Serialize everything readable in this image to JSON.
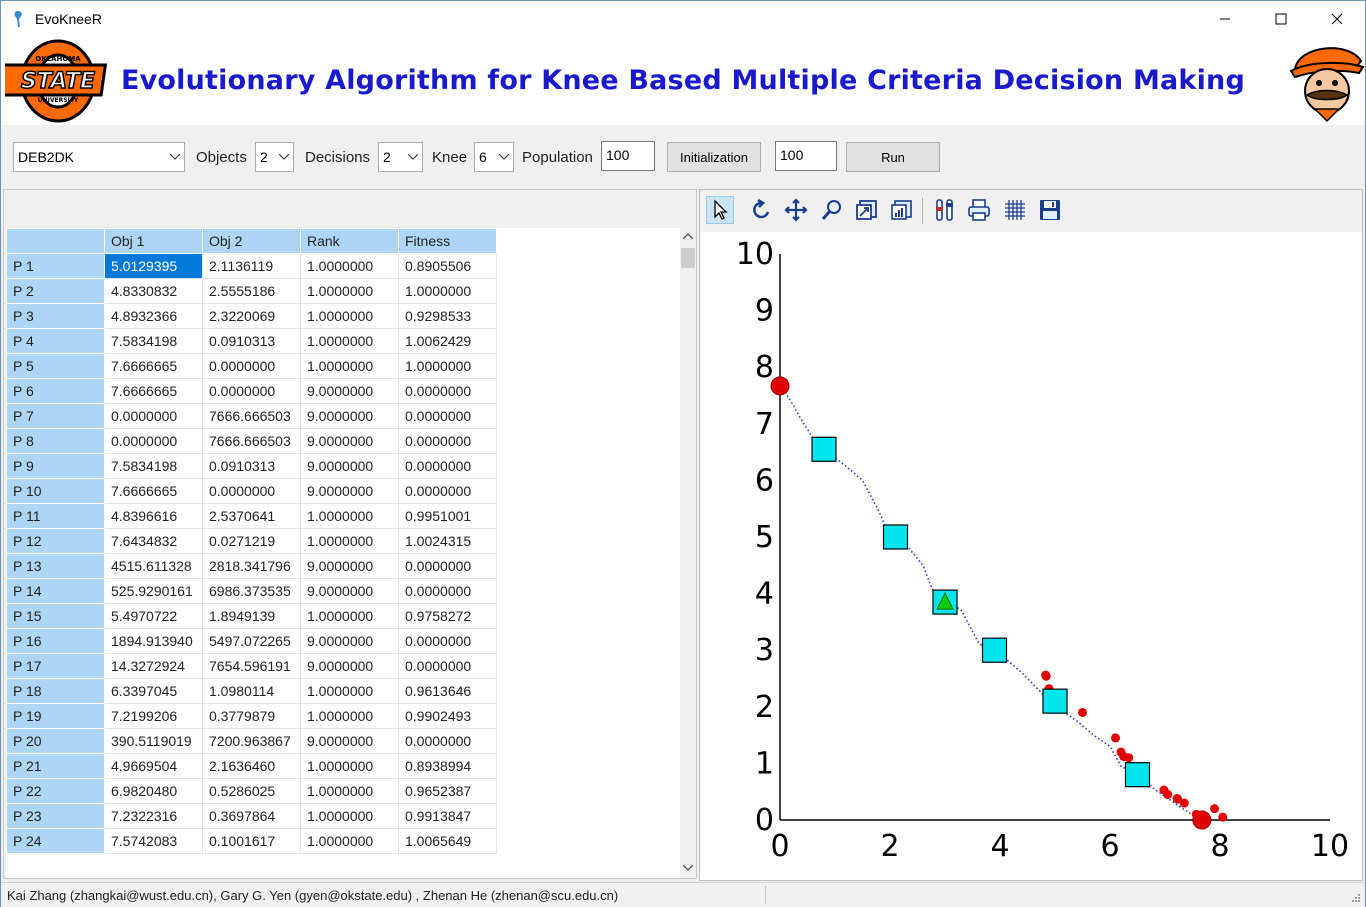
{
  "window": {
    "title": "EvoKneeR"
  },
  "banner": {
    "title": "Evolutionary Algorithm for Knee Based Multiple Criteria Decision Making",
    "logo_text_top": "OKLAHOMA",
    "logo_text_main": "STATE",
    "logo_text_bottom": "UNIVERSITY"
  },
  "controls": {
    "problem_select": "DEB2DK",
    "objects_label": "Objects",
    "objects_value": "2",
    "decisions_label": "Decisions",
    "decisions_value": "2",
    "knee_label": "Knee",
    "knee_value": "6",
    "population_label": "Population",
    "population_value": "100",
    "initialization_button": "Initialization",
    "generations_value": "100",
    "run_button": "Run"
  },
  "table": {
    "columns": [
      "Obj 1",
      "Obj 2",
      "Rank",
      "Fitness"
    ],
    "rows": [
      [
        "P 1",
        "5.0129395",
        "2.1136119",
        "1.0000000",
        "0.8905506"
      ],
      [
        "P 2",
        "4.8330832",
        "2.5555186",
        "1.0000000",
        "1.0000000"
      ],
      [
        "P 3",
        "4.8932366",
        "2.3220069",
        "1.0000000",
        "0.9298533"
      ],
      [
        "P 4",
        "7.5834198",
        "0.0910313",
        "1.0000000",
        "1.0062429"
      ],
      [
        "P 5",
        "7.6666665",
        "0.0000000",
        "1.0000000",
        "1.0000000"
      ],
      [
        "P 6",
        "7.6666665",
        "0.0000000",
        "9.0000000",
        "0.0000000"
      ],
      [
        "P 7",
        "0.0000000",
        "7666.666503",
        "9.0000000",
        "0.0000000"
      ],
      [
        "P 8",
        "0.0000000",
        "7666.666503",
        "9.0000000",
        "0.0000000"
      ],
      [
        "P 9",
        "7.5834198",
        "0.0910313",
        "9.0000000",
        "0.0000000"
      ],
      [
        "P 10",
        "7.6666665",
        "0.0000000",
        "9.0000000",
        "0.0000000"
      ],
      [
        "P 11",
        "4.8396616",
        "2.5370641",
        "1.0000000",
        "0.9951001"
      ],
      [
        "P 12",
        "7.6434832",
        "0.0271219",
        "1.0000000",
        "1.0024315"
      ],
      [
        "P 13",
        "4515.611328",
        "2818.341796",
        "9.0000000",
        "0.0000000"
      ],
      [
        "P 14",
        "525.9290161",
        "6986.373535",
        "9.0000000",
        "0.0000000"
      ],
      [
        "P 15",
        "5.4970722",
        "1.8949139",
        "1.0000000",
        "0.9758272"
      ],
      [
        "P 16",
        "1894.913940",
        "5497.072265",
        "9.0000000",
        "0.0000000"
      ],
      [
        "P 17",
        "14.3272924",
        "7654.596191",
        "9.0000000",
        "0.0000000"
      ],
      [
        "P 18",
        "6.3397045",
        "1.0980114",
        "1.0000000",
        "0.9613646"
      ],
      [
        "P 19",
        "7.2199206",
        "0.3779879",
        "1.0000000",
        "0.9902493"
      ],
      [
        "P 20",
        "390.5119019",
        "7200.963867",
        "9.0000000",
        "0.0000000"
      ],
      [
        "P 21",
        "4.9669504",
        "2.1636460",
        "1.0000000",
        "0.8938994"
      ],
      [
        "P 22",
        "6.9820480",
        "0.5286025",
        "1.0000000",
        "0.9652387"
      ],
      [
        "P 23",
        "7.2322316",
        "0.3697864",
        "1.0000000",
        "0.9913847"
      ],
      [
        "P 24",
        "7.5742083",
        "0.1001617",
        "1.0000000",
        "1.0065649"
      ]
    ]
  },
  "plot_toolbar": {
    "icons": [
      "pointer-icon",
      "rotate-icon",
      "pan-icon",
      "zoom-icon",
      "zoom-fit-icon",
      "chart-icon",
      "settings-icon",
      "print-icon",
      "grid-icon",
      "save-icon"
    ]
  },
  "chart_data": {
    "type": "scatter",
    "title": "",
    "xlabel": "",
    "ylabel": "",
    "xlim": [
      0,
      10
    ],
    "ylim": [
      0,
      10
    ],
    "x_ticks": [
      "0",
      "2",
      "4",
      "6",
      "8",
      "10"
    ],
    "y_ticks": [
      "0",
      "1",
      "2",
      "3",
      "4",
      "5",
      "6",
      "7",
      "8",
      "9",
      "10"
    ],
    "grid": false,
    "series": [
      {
        "type": "line",
        "style": "dotted",
        "color": "#3333cc",
        "x": [
          0.0,
          0.2,
          0.4,
          0.6,
          0.8,
          1.0,
          1.2,
          1.5,
          1.8,
          2.0,
          2.3,
          2.6,
          2.8,
          3.0,
          3.3,
          3.6,
          3.8,
          4.1,
          4.4,
          4.7,
          4.9,
          5.1,
          5.4,
          5.7,
          6.0,
          6.2,
          6.5,
          6.8,
          7.1,
          7.4,
          7.67
        ],
        "y": [
          7.67,
          7.4,
          7.05,
          6.75,
          6.55,
          6.4,
          6.25,
          6.0,
          5.45,
          5.0,
          4.85,
          4.5,
          4.0,
          3.9,
          3.7,
          3.15,
          2.95,
          2.85,
          2.6,
          2.3,
          2.1,
          1.95,
          1.75,
          1.5,
          1.3,
          0.95,
          0.8,
          0.55,
          0.35,
          0.15,
          0.0
        ]
      },
      {
        "type": "scatter",
        "marker": "circle",
        "color": "#e00000",
        "x": [
          0.0,
          7.67,
          7.58,
          7.64,
          7.57,
          7.22,
          7.23,
          6.98,
          6.34,
          6.2,
          6.25,
          6.1,
          5.5,
          5.01,
          4.83,
          4.89,
          4.84,
          4.97,
          7.9,
          8.05,
          7.35,
          7.05
        ],
        "y": [
          7.67,
          0.0,
          0.09,
          0.03,
          0.1,
          0.38,
          0.37,
          0.53,
          1.1,
          1.2,
          1.12,
          1.45,
          1.9,
          2.11,
          2.56,
          2.32,
          2.54,
          2.16,
          0.2,
          0.05,
          0.3,
          0.45
        ]
      },
      {
        "type": "scatter",
        "marker": "square",
        "color": "#00e5ee",
        "x": [
          0.8,
          2.1,
          3.0,
          3.9,
          5.0,
          6.5
        ],
        "y": [
          6.55,
          5.0,
          3.85,
          3.0,
          2.1,
          0.8
        ]
      },
      {
        "type": "scatter",
        "marker": "triangle",
        "color": "#00cc00",
        "x": [
          3.0
        ],
        "y": [
          3.85
        ]
      }
    ]
  },
  "status": {
    "authors": "Kai Zhang (zhangkai@wust.edu.cn),  Gary G. Yen (gyen@okstate.edu) , Zhenan He (zhenan@scu.edu.cn)"
  }
}
